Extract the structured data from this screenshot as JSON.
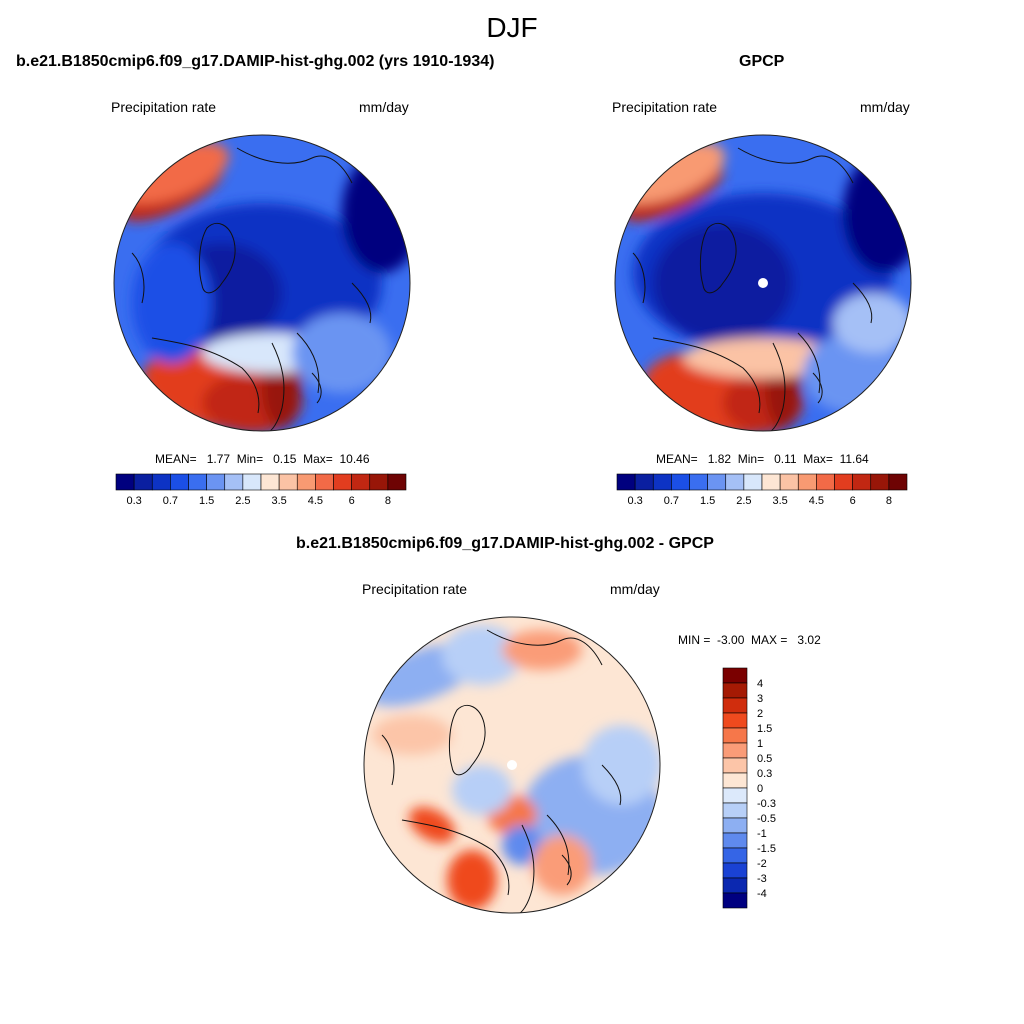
{
  "figure": {
    "title": "DJF"
  },
  "panels": [
    {
      "title": "b.e21.B1850cmip6.f09_g17.DAMIP-hist-ghg.002 (yrs 1910-1934)",
      "left_label": "Precipitation rate",
      "right_label": "mm/day",
      "stats": {
        "mean_label": "MEAN=",
        "mean": "1.77",
        "min_label": "Min=",
        "min": "0.15",
        "max_label": "Max=",
        "max": "10.46"
      }
    },
    {
      "title": "GPCP",
      "left_label": "Precipitation rate",
      "right_label": "mm/day",
      "stats": {
        "mean_label": "MEAN=",
        "mean": "1.82",
        "min_label": "Min=",
        "min": "0.11",
        "max_label": "Max=",
        "max": "11.64"
      }
    },
    {
      "title": "b.e21.B1850cmip6.f09_g17.DAMIP-hist-ghg.002 - GPCP",
      "left_label": "Precipitation rate",
      "right_label": "mm/day",
      "stats": {
        "min_label": "MIN =",
        "min": "-3.00",
        "max_label": "MAX =",
        "max": "3.02"
      }
    }
  ],
  "chart_data": [
    {
      "type": "heatmap",
      "projection": "north polar stereographic",
      "panel": "model",
      "title": "b.e21.B1850cmip6.f09_g17.DAMIP-hist-ghg.002 (yrs 1910-1934)",
      "variable": "Precipitation rate",
      "units": "mm/day",
      "colorbar": {
        "levels": [
          0.2,
          0.3,
          0.5,
          0.7,
          1,
          1.5,
          2,
          2.5,
          3,
          3.5,
          4,
          4.5,
          5,
          6,
          7,
          8
        ],
        "tick_labels": [
          "0.3",
          "0.7",
          "1.5",
          "2.5",
          "3.5",
          "4.5",
          "6",
          "8"
        ],
        "colors": [
          "#00007f",
          "#0a1fa0",
          "#0d33c4",
          "#1b4fe6",
          "#3a6ef0",
          "#6b94f2",
          "#a5c0f6",
          "#d8e7fb",
          "#fde6d4",
          "#fbc3a5",
          "#f89a72",
          "#f26a47",
          "#e23d1f",
          "#c12712",
          "#981608",
          "#6e0303"
        ],
        "orientation": "horizontal"
      },
      "mean": 1.77,
      "min": 0.15,
      "max": 10.46
    },
    {
      "type": "heatmap",
      "projection": "north polar stereographic",
      "panel": "observations",
      "title": "GPCP",
      "variable": "Precipitation rate",
      "units": "mm/day",
      "colorbar": {
        "levels": [
          0.2,
          0.3,
          0.5,
          0.7,
          1,
          1.5,
          2,
          2.5,
          3,
          3.5,
          4,
          4.5,
          5,
          6,
          7,
          8
        ],
        "tick_labels": [
          "0.3",
          "0.7",
          "1.5",
          "2.5",
          "3.5",
          "4.5",
          "6",
          "8"
        ],
        "colors": [
          "#00007f",
          "#0a1fa0",
          "#0d33c4",
          "#1b4fe6",
          "#3a6ef0",
          "#6b94f2",
          "#a5c0f6",
          "#d8e7fb",
          "#fde6d4",
          "#fbc3a5",
          "#f89a72",
          "#f26a47",
          "#e23d1f",
          "#c12712",
          "#981608",
          "#6e0303"
        ],
        "orientation": "horizontal"
      },
      "mean": 1.82,
      "min": 0.11,
      "max": 11.64
    },
    {
      "type": "heatmap",
      "projection": "north polar stereographic",
      "panel": "difference",
      "title": "b.e21.B1850cmip6.f09_g17.DAMIP-hist-ghg.002 - GPCP",
      "variable": "Precipitation rate",
      "units": "mm/day",
      "colorbar": {
        "tick_labels": [
          "4",
          "3",
          "2",
          "1.5",
          "1",
          "0.5",
          "0.3",
          "0",
          "-0.3",
          "-0.5",
          "-1",
          "-1.5",
          "-2",
          "-3",
          "-4"
        ],
        "colors": [
          "#7a0000",
          "#a51a04",
          "#d02d0d",
          "#ef4a1e",
          "#f6774a",
          "#fa9c78",
          "#fcc5a8",
          "#fde6d4",
          "#dce9fb",
          "#b7cff7",
          "#8daff2",
          "#5f8aee",
          "#3565e6",
          "#1a42d4",
          "#0b28b0",
          "#000080"
        ],
        "orientation": "vertical"
      },
      "min": -3.0,
      "max": 3.02
    }
  ]
}
